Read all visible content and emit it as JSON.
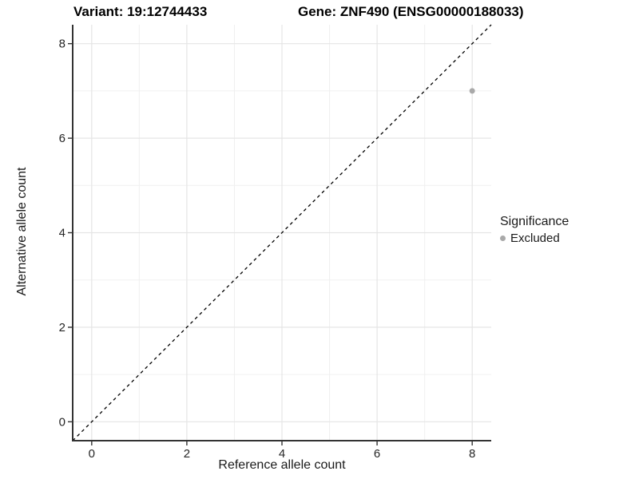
{
  "chart_data": {
    "type": "scatter",
    "titles": {
      "variant": "Variant: 19:12744433",
      "gene": "Gene: ZNF490 (ENSG00000188033)"
    },
    "xlabel": "Reference allele count",
    "ylabel": "Alternative allele count",
    "xlim": [
      -0.4,
      8.4
    ],
    "ylim": [
      -0.4,
      8.4
    ],
    "x_ticks": [
      0,
      2,
      4,
      6,
      8
    ],
    "y_ticks": [
      0,
      2,
      4,
      6,
      8
    ],
    "x_minor_gridlines": [
      1,
      3,
      5,
      7
    ],
    "y_minor_gridlines": [
      1,
      3,
      5,
      7
    ],
    "grid": true,
    "reference_line": {
      "kind": "identity",
      "from": -0.4,
      "to": 8.4,
      "style": "dashed",
      "color": "#000000"
    },
    "series": [
      {
        "name": "Excluded",
        "color": "#A9A9A9",
        "points": [
          {
            "x": 8,
            "y": 7
          }
        ]
      }
    ],
    "legend": {
      "title": "Significance",
      "position": "right",
      "items": [
        {
          "label": "Excluded",
          "color": "#A9A9A9"
        }
      ]
    },
    "style_colors": {
      "major_grid": "#E5E5E5",
      "minor_grid": "#F0F0F0",
      "axis_line": "#333333",
      "tick_label": "#262626",
      "point": "#A9A9A9"
    }
  }
}
